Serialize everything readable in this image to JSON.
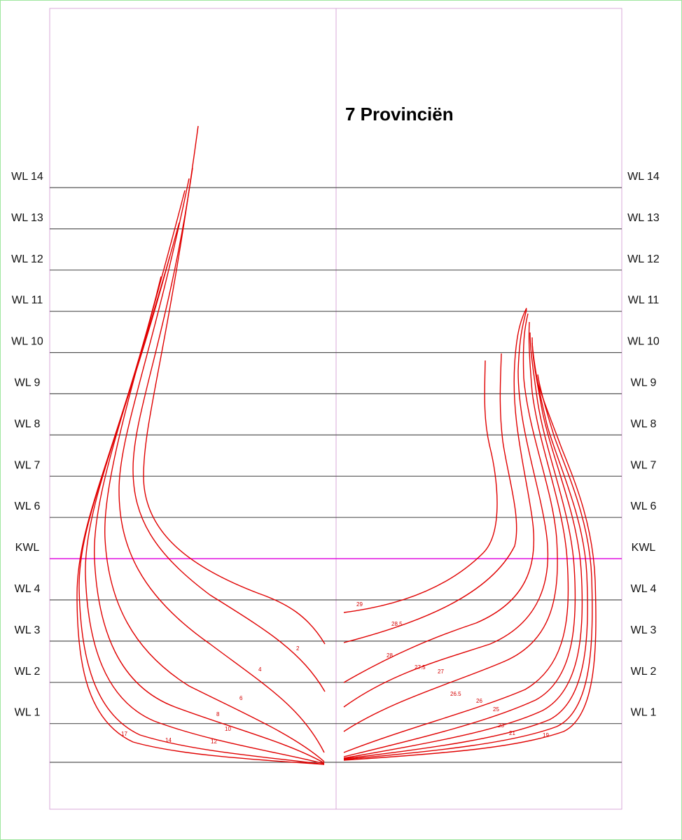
{
  "title": "7 Provinciën",
  "waterlines": [
    {
      "label": "WL 14",
      "kind": "wl"
    },
    {
      "label": "WL 13",
      "kind": "wl"
    },
    {
      "label": "WL 12",
      "kind": "wl"
    },
    {
      "label": "WL 11",
      "kind": "wl"
    },
    {
      "label": "WL 10",
      "kind": "wl"
    },
    {
      "label": "WL 9",
      "kind": "wl"
    },
    {
      "label": "WL 8",
      "kind": "wl"
    },
    {
      "label": "WL 7",
      "kind": "wl"
    },
    {
      "label": "WL 6",
      "kind": "wl"
    },
    {
      "label": "KWL",
      "kind": "kwl"
    },
    {
      "label": "WL 4",
      "kind": "wl"
    },
    {
      "label": "WL 3",
      "kind": "wl"
    },
    {
      "label": "WL 2",
      "kind": "wl"
    },
    {
      "label": "WL 1",
      "kind": "wl"
    }
  ],
  "fore_sections": [
    "2",
    "4",
    "6",
    "8",
    "10",
    "12",
    "14",
    "17"
  ],
  "aft_sections": [
    "29",
    "28.5",
    "28",
    "27.5",
    "27",
    "26.5",
    "26",
    "25",
    "23",
    "21",
    "19"
  ],
  "colors": {
    "curve": "#e00000",
    "waterline": "#555555",
    "kwl": "#e010e0",
    "frame": "#d8a8d8"
  }
}
